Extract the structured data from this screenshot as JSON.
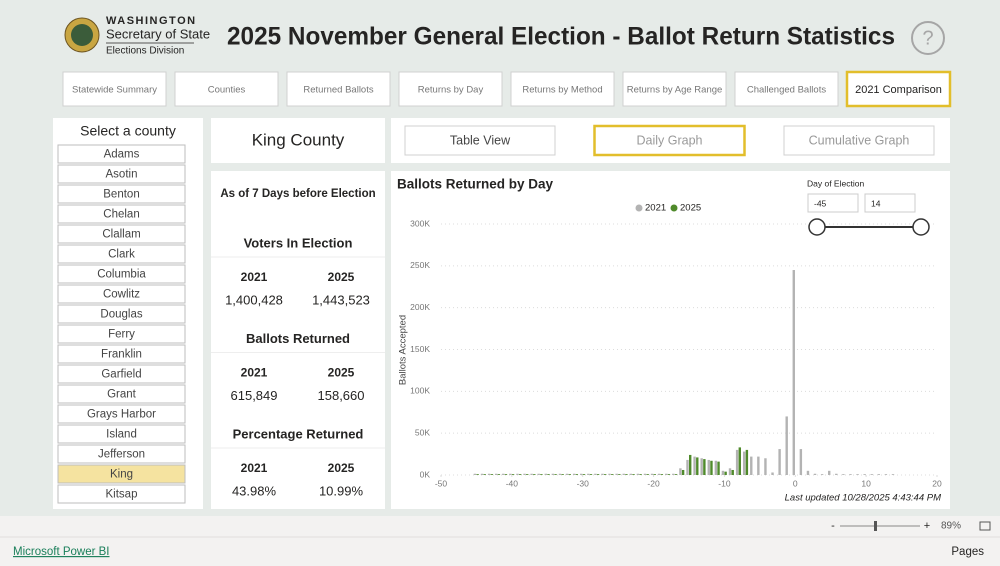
{
  "header": {
    "org_line1": "WASHINGTON",
    "org_line2": "Secretary of State",
    "org_line3": "Elections Division",
    "title": "2025 November General Election - Ballot Return Statistics",
    "help": "?"
  },
  "tabs": [
    "Statewide Summary",
    "Counties",
    "Returned Ballots",
    "Returns by Day",
    "Returns by Method",
    "Returns by Age Range",
    "Challenged Ballots",
    "2021 Comparison"
  ],
  "active_tab": 7,
  "county_list": {
    "title": "Select a county",
    "items": [
      "Adams",
      "Asotin",
      "Benton",
      "Chelan",
      "Clallam",
      "Clark",
      "Columbia",
      "Cowlitz",
      "Douglas",
      "Ferry",
      "Franklin",
      "Garfield",
      "Grant",
      "Grays Harbor",
      "Island",
      "Jefferson",
      "King",
      "Kitsap"
    ],
    "selected": 16
  },
  "county_name": "King County",
  "stats": {
    "as_of": "As of 7 Days before Election",
    "sections": [
      {
        "title": "Voters In Election",
        "years": [
          "2021",
          "2025"
        ],
        "values": [
          "1,400,428",
          "1,443,523"
        ]
      },
      {
        "title": "Ballots Returned",
        "years": [
          "2021",
          "2025"
        ],
        "values": [
          "615,849",
          "158,660"
        ]
      },
      {
        "title": "Percentage Returned",
        "years": [
          "2021",
          "2025"
        ],
        "values": [
          "43.98%",
          "10.99%"
        ]
      }
    ]
  },
  "views": [
    "Table View",
    "Daily Graph",
    "Cumulative Graph"
  ],
  "active_view": 1,
  "slicer": {
    "label": "Day of Election",
    "from": "-45",
    "to": "14"
  },
  "chart_data": {
    "type": "bar",
    "title": "Ballots Returned by Day",
    "y_label": "Ballots Accepted",
    "note": "Last updated 10/28/2025 4:43:44 PM",
    "x": [
      -45,
      -44,
      -43,
      -42,
      -41,
      -40,
      -39,
      -38,
      -37,
      -36,
      -35,
      -34,
      -33,
      -32,
      -31,
      -30,
      -29,
      -28,
      -27,
      -26,
      -25,
      -24,
      -23,
      -22,
      -21,
      -20,
      -19,
      -18,
      -17,
      -16,
      -15,
      -14,
      -13,
      -12,
      -11,
      -10,
      -9,
      -8,
      -7,
      -6,
      -5,
      -4,
      -3,
      -2,
      -1,
      0,
      1,
      2,
      3,
      4,
      5,
      6,
      7,
      8,
      9,
      10,
      11,
      12,
      13,
      14
    ],
    "series": [
      {
        "name": "2021",
        "color": "#b3b3b3",
        "values": [
          1500,
          1500,
          1500,
          1500,
          1500,
          1500,
          1500,
          1500,
          1500,
          1500,
          1500,
          1500,
          1500,
          1500,
          1500,
          1500,
          1500,
          1500,
          1500,
          1500,
          1500,
          1500,
          1500,
          1500,
          1500,
          1500,
          1500,
          1500,
          1500,
          8000,
          18000,
          22000,
          20000,
          18000,
          17000,
          5000,
          8000,
          30000,
          28000,
          22000,
          22000,
          20000,
          3000,
          31000,
          70000,
          245000,
          31000,
          5000,
          1500,
          1000,
          5000,
          1500,
          1000,
          1000,
          1000,
          1000,
          1000,
          1000,
          1000,
          1000
        ]
      },
      {
        "name": "2025",
        "color": "#4f8a2b",
        "values": [
          1000,
          1000,
          1000,
          1000,
          1000,
          1000,
          1000,
          1000,
          1000,
          1000,
          1000,
          1000,
          1000,
          1000,
          1000,
          1000,
          1000,
          1000,
          1000,
          1000,
          1000,
          1000,
          1000,
          1000,
          1000,
          1000,
          1000,
          1000,
          1000,
          6000,
          24000,
          21000,
          19000,
          17000,
          16000,
          4000,
          6000,
          33000,
          30000,
          null,
          null,
          null,
          null,
          null,
          null,
          null,
          null,
          null,
          null,
          null,
          null,
          null,
          null,
          null,
          null,
          null,
          null,
          null,
          null,
          null
        ]
      }
    ],
    "xlim": [
      -50,
      20
    ],
    "xticks": [
      -50,
      -40,
      -30,
      -20,
      -10,
      0,
      10,
      20
    ],
    "ylim": [
      0,
      300000
    ],
    "yticks": [
      {
        "value": 0,
        "label": "0K"
      },
      {
        "value": 50000,
        "label": "50K"
      },
      {
        "value": 100000,
        "label": "100K"
      },
      {
        "value": 150000,
        "label": "150K"
      },
      {
        "value": 200000,
        "label": "200K"
      },
      {
        "value": 250000,
        "label": "250K"
      },
      {
        "value": 300000,
        "label": "300K"
      }
    ],
    "grid": true,
    "legend": "top"
  },
  "footer": {
    "zoom_out": "-",
    "zoom_in": "+",
    "zoom": "89%",
    "link": "Microsoft Power BI",
    "pages": "Pages"
  }
}
